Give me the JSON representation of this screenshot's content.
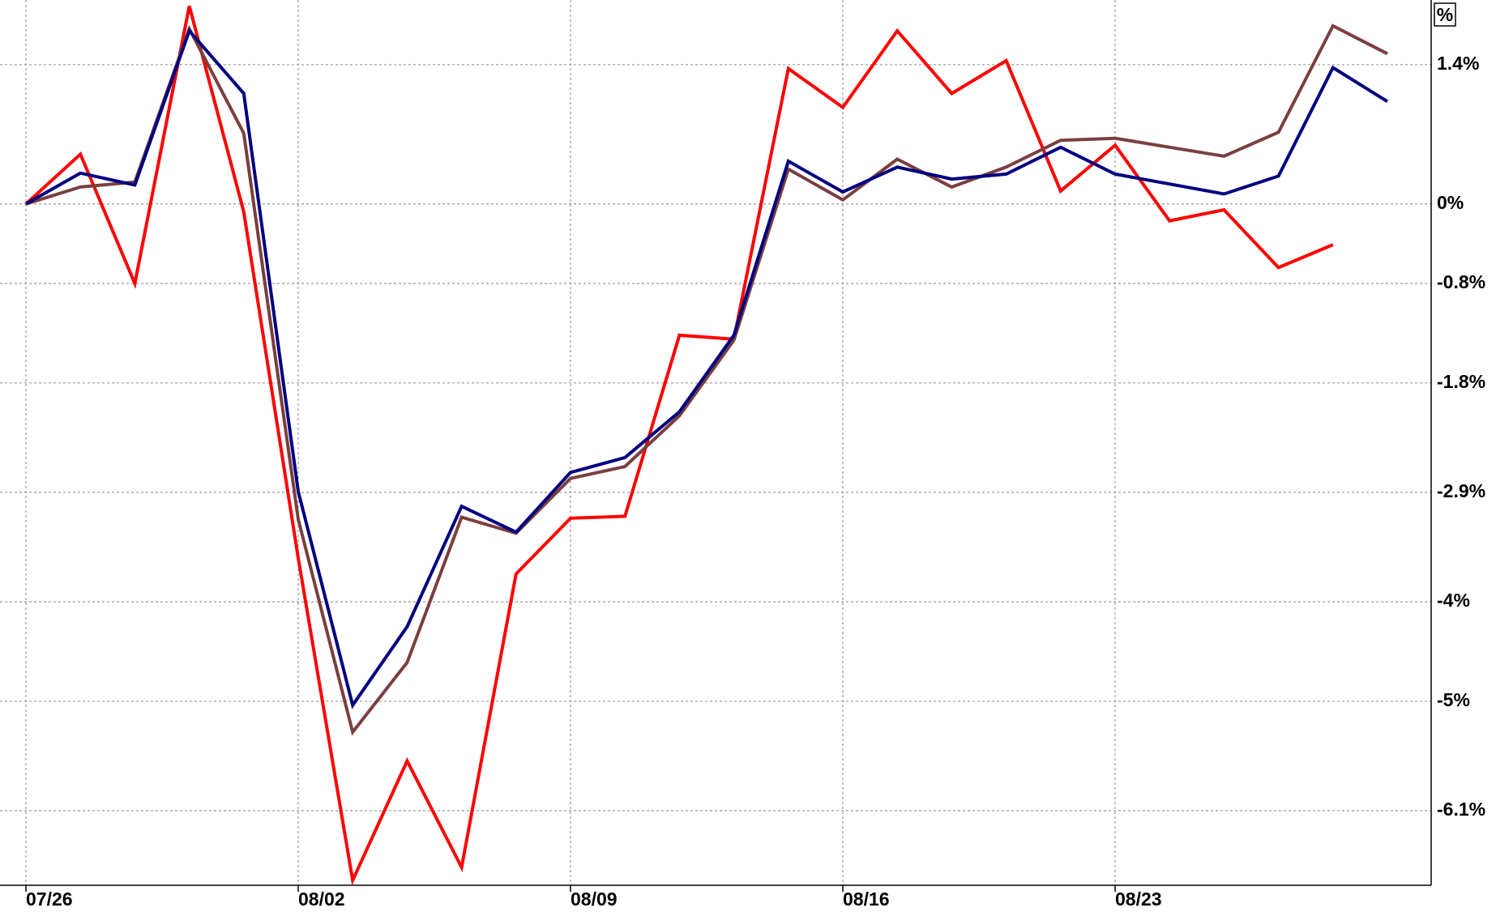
{
  "chart_data": {
    "type": "line",
    "y_axis_label": "%",
    "categories": [
      "07/26",
      null,
      null,
      null,
      null,
      "08/02",
      null,
      null,
      null,
      null,
      "08/09",
      null,
      null,
      null,
      null,
      "08/16",
      null,
      null,
      null,
      null,
      "08/23",
      null,
      null,
      null,
      null,
      null
    ],
    "series": [
      {
        "color": "#ff0000",
        "values": [
          0,
          0.5,
          -0.8,
          1.99,
          -0.08,
          -3.56,
          -6.8,
          -5.6,
          -6.67,
          -3.72,
          -3.16,
          -3.14,
          -1.32,
          -1.36,
          1.36,
          0.97,
          1.74,
          1.11,
          1.44,
          0.13,
          0.59,
          -0.17,
          -0.06,
          -0.64,
          -0.41,
          null
        ]
      },
      {
        "color": "#7a3f3f",
        "values": [
          0,
          0.17,
          0.22,
          1.76,
          0.71,
          -3.17,
          -5.31,
          -4.61,
          -3.15,
          -3.31,
          -2.76,
          -2.64,
          -2.13,
          -1.37,
          0.35,
          0.04,
          0.45,
          0.17,
          0.37,
          0.64,
          0.66,
          0.57,
          0.48,
          0.72,
          1.79,
          1.51
        ]
      },
      {
        "color": "#000080",
        "values": [
          0,
          0.31,
          0.19,
          1.74,
          1.11,
          -2.89,
          -5.04,
          -4.25,
          -3.04,
          -3.3,
          -2.7,
          -2.55,
          -2.09,
          -1.32,
          0.43,
          0.12,
          0.37,
          0.25,
          0.3,
          0.57,
          0.3,
          0.2,
          0.1,
          0.28,
          1.37,
          1.03
        ]
      }
    ],
    "ylim": [
      -6.85,
      2.05
    ],
    "yticks": [
      {
        "value": 1.4,
        "label": "1.4%"
      },
      {
        "value": 0,
        "label": "0%"
      },
      {
        "value": -0.8,
        "label": "-0.8%"
      },
      {
        "value": -1.8,
        "label": "-1.8%"
      },
      {
        "value": -2.9,
        "label": "-2.9%"
      },
      {
        "value": -4,
        "label": "-4%"
      },
      {
        "value": -5,
        "label": "-5%"
      },
      {
        "value": -6.1,
        "label": "-6.1%"
      }
    ],
    "grid": true
  }
}
